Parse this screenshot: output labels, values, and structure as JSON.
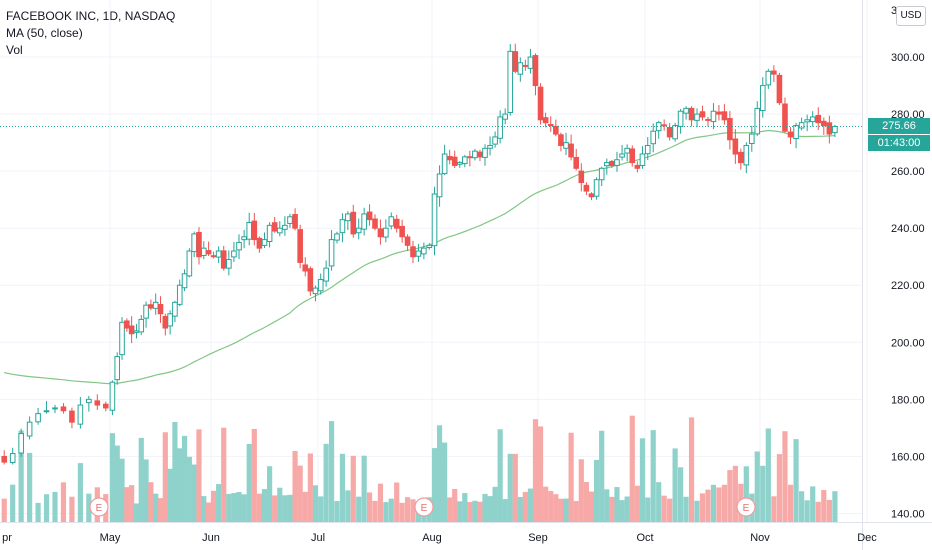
{
  "legend": {
    "symbol": "FACEBOOK INC, 1D, NASDAQ",
    "indicator": "MA (50, close)",
    "volume": "Vol"
  },
  "currency": "USD",
  "last_price_label": "275.66",
  "countdown_label": "01:43:00",
  "colors": {
    "up": "#26a69a",
    "down": "#ef5350",
    "up_volume": "#8fd2cc",
    "down_volume": "#f7a9a7",
    "ma": "#81c784",
    "last_price_line": "#26a69a",
    "earnings_marker": "#ef9a9a"
  },
  "chart_data": {
    "type": "candlestick",
    "y_axis": {
      "ticks": [
        140,
        160,
        180,
        200,
        220,
        240,
        260,
        280,
        300
      ],
      "range": [
        137,
        320
      ],
      "top_partial_label": "3"
    },
    "x_axis": {
      "labels": [
        "pr",
        "May",
        "Jun",
        "Jul",
        "Aug",
        "Sep",
        "Oct",
        "Nov",
        "Dec"
      ]
    },
    "earnings_marker_label": "E",
    "earnings_markers_after_month": [
      "Apr",
      "Jul",
      "Oct"
    ],
    "last_price": 275.66,
    "closes_by_month": {
      "Apr": [
        158,
        161,
        168,
        172,
        175,
        176,
        177,
        176,
        172,
        178,
        180,
        178,
        177
      ],
      "May": [
        186,
        195,
        207,
        205,
        203,
        204,
        208,
        213,
        212,
        214,
        210,
        205,
        210,
        214,
        220,
        224,
        232,
        238,
        230,
        233,
        231
      ],
      "Jun": [
        230,
        232,
        226,
        229,
        232,
        235,
        237,
        242,
        236,
        233,
        236,
        241,
        239,
        240,
        241,
        244,
        240,
        228,
        225,
        218,
        219
      ],
      "Jul": [
        222,
        226,
        236,
        238,
        243,
        245,
        238,
        240,
        245,
        243,
        240,
        237,
        240,
        244,
        240,
        237,
        234,
        230,
        232,
        233,
        234
      ],
      "Aug": [
        252,
        259,
        266,
        264,
        262,
        263,
        265,
        265,
        267,
        265,
        268,
        269,
        272,
        279,
        280,
        302,
        295,
        298,
        297,
        300,
        290
      ],
      "Sep": [
        278,
        277,
        276,
        273,
        269,
        270,
        265,
        261,
        256,
        253,
        251,
        257,
        261,
        263,
        262,
        264,
        266,
        268,
        263,
        261,
        266
      ],
      "Oct": [
        269,
        274,
        277,
        276,
        272,
        276,
        281,
        282,
        278,
        280,
        279,
        278,
        281,
        280,
        278,
        271,
        266,
        263,
        269,
        273,
        282
      ],
      "Nov": [
        290,
        295,
        294,
        284,
        274,
        272,
        276,
        277,
        278,
        279,
        277,
        276,
        273,
        275.66
      ]
    },
    "volume_note": "Volume shown as histogram at bottom; relative heights only, no volume scale printed",
    "moving_average": "MA (50, close)"
  }
}
